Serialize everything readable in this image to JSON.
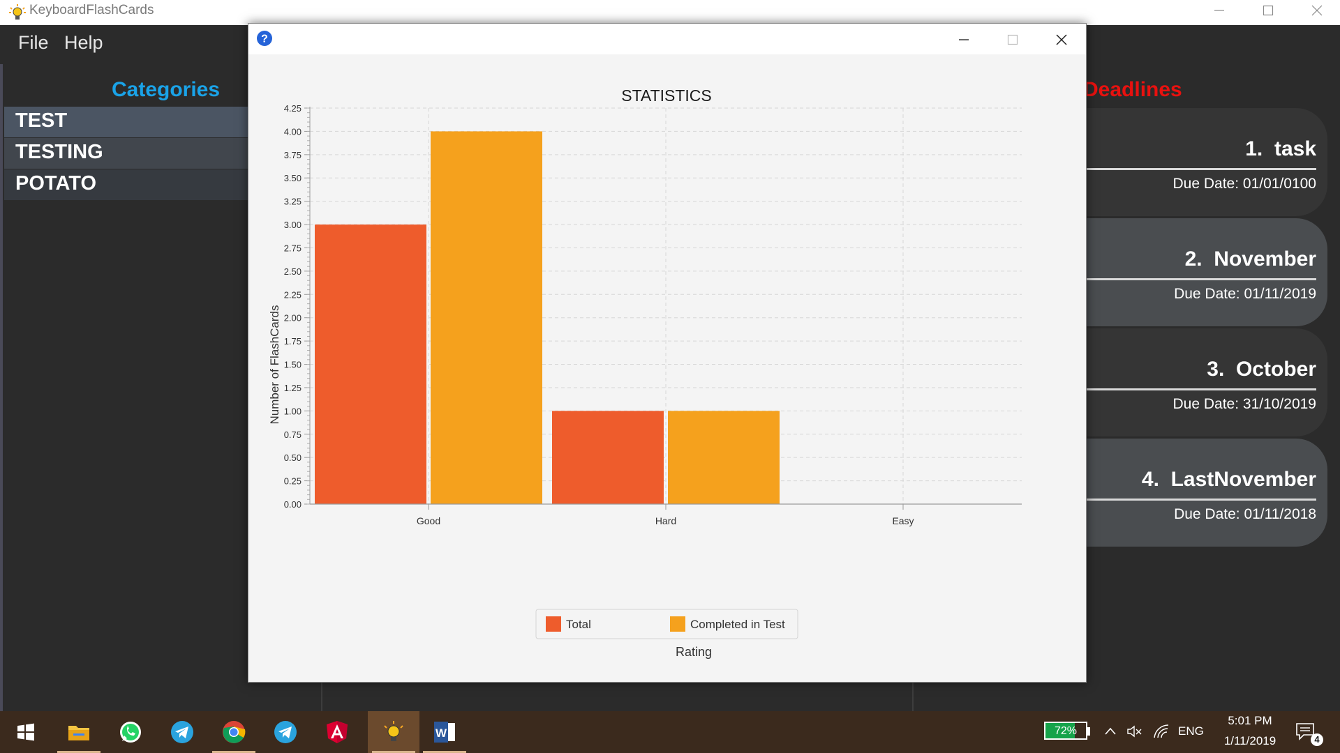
{
  "window": {
    "title": "KeyboardFlashCards",
    "minimize_icon": "minimize-icon",
    "maximize_icon": "maximize-icon",
    "close_icon": "close-icon"
  },
  "menu": {
    "items": [
      "File",
      "Help"
    ]
  },
  "categories": {
    "title": "Categories",
    "items": [
      "TEST",
      "TESTING",
      "POTATO"
    ],
    "colors": {
      "title": "#1aa3e8",
      "selected": "#4b5563"
    }
  },
  "deadlines": {
    "title": "Deadlines",
    "items": [
      {
        "index": "1.",
        "name": "task",
        "due": "Due Date: 01/01/0100"
      },
      {
        "index": "2.",
        "name": "November",
        "due": "Due Date: 01/11/2019"
      },
      {
        "index": "3.",
        "name": "October",
        "due": "Due Date: 31/10/2019"
      },
      {
        "index": "4.",
        "name": "LastNovember",
        "due": "Due Date: 01/11/2018"
      }
    ],
    "colors": {
      "title": "#e8110f",
      "card_dark": "#2b2b2b",
      "card_light": "#4a4d50"
    }
  },
  "dialog": {
    "help_icon": "help-icon"
  },
  "chart_data": {
    "type": "bar",
    "title": "STATISTICS",
    "xlabel": "Rating",
    "ylabel": "Number of FlashCards",
    "categories": [
      "Good",
      "Hard",
      "Easy"
    ],
    "series": [
      {
        "name": "Total",
        "values": [
          3,
          1,
          0
        ],
        "color": "#ee5c2c"
      },
      {
        "name": "Completed in Test",
        "values": [
          4,
          1,
          0
        ],
        "color": "#f5a11d"
      }
    ],
    "ylim": [
      0,
      4.25
    ],
    "yticks": [
      "0.00",
      "0.25",
      "0.50",
      "0.75",
      "1.00",
      "1.25",
      "1.50",
      "1.75",
      "2.00",
      "2.25",
      "2.50",
      "2.75",
      "3.00",
      "3.25",
      "3.50",
      "3.75",
      "4.00",
      "4.25"
    ],
    "grid": true,
    "legend": "bottom-center"
  },
  "taskbar": {
    "apps": [
      "start-icon",
      "file-explorer-icon",
      "whatsapp-icon",
      "telegram-icon",
      "chrome-icon",
      "telegram-icon",
      "angular-icon",
      "lightbulb-app-icon",
      "word-icon"
    ],
    "battery": "72%",
    "battery_level": 0.72,
    "language": "ENG",
    "time": "5:01 PM",
    "date": "1/11/2019",
    "notifications": "4"
  }
}
